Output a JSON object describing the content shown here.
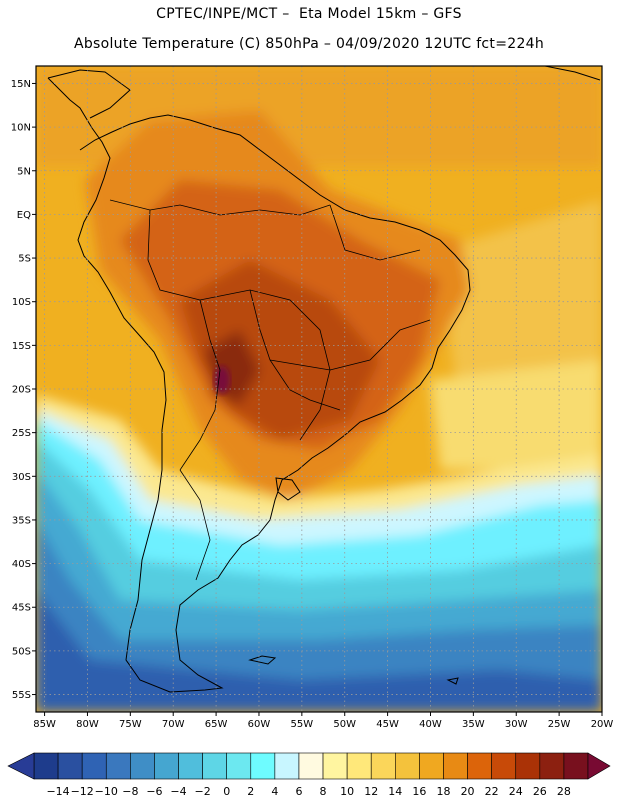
{
  "header": {
    "line1": "CPTEC/INPE/MCT –  Eta Model 15km – GFS",
    "line2": "Absolute Temperature (C) 850hPa – 04/09/2020 12UTC fct=224h"
  },
  "map": {
    "lat_labels": [
      "15N",
      "10N",
      "5N",
      "EQ",
      "5S",
      "10S",
      "15S",
      "20S",
      "25S",
      "30S",
      "35S",
      "40S",
      "45S",
      "50S",
      "55S"
    ],
    "lon_labels": [
      "85W",
      "80W",
      "75W",
      "70W",
      "65W",
      "60W",
      "55W",
      "50W",
      "45W",
      "40W",
      "35W",
      "30W",
      "25W",
      "20W"
    ],
    "lat_range": [
      17,
      -57
    ],
    "lon_range": [
      -86,
      -20
    ],
    "gridlines": "dotted"
  },
  "colorbar": {
    "labels": [
      "-14",
      "-12",
      "-10",
      "-8",
      "-6",
      "-4",
      "-2",
      "0",
      "2",
      "4",
      "6",
      "8",
      "10",
      "12",
      "14",
      "16",
      "18",
      "20",
      "22",
      "24",
      "26",
      "28"
    ],
    "colors": [
      "#1e3c8c",
      "#2a50a0",
      "#2f63b4",
      "#3a78be",
      "#3f8ec6",
      "#45a6d0",
      "#50bedc",
      "#5ed6e6",
      "#6ce8f0",
      "#6efcff",
      "#c8f6ff",
      "#fffae0",
      "#fff5a0",
      "#ffe87a",
      "#fbd65a",
      "#f4c23c",
      "#f0a820",
      "#e88a14",
      "#dc640a",
      "#c84a08",
      "#aa3206",
      "#8c2010",
      "#78101e"
    ],
    "extend_left_color": "#283c96",
    "extend_right_color": "#780a32"
  }
}
